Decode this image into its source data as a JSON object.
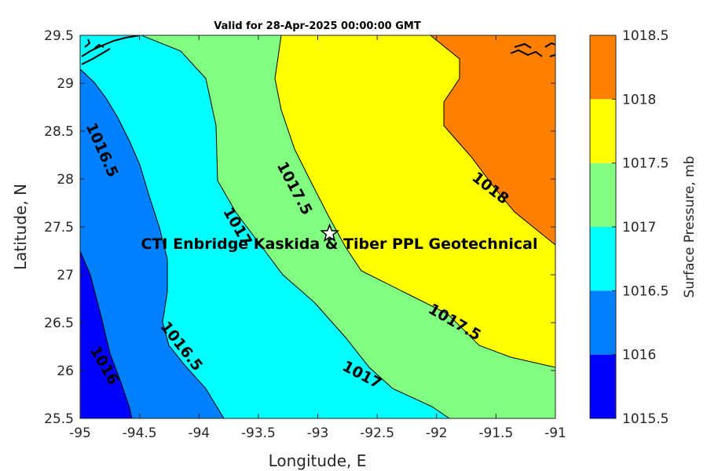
{
  "title": "Valid for 28-Apr-2025 00:00:00 GMT",
  "chart_data": {
    "type": "contour-map",
    "xlabel": "Longitude, E",
    "ylabel": "Latitude, N",
    "xlim": [
      -95,
      -91
    ],
    "ylim": [
      25.5,
      29.5
    ],
    "xticks": [
      "-95",
      "-94.5",
      "-94",
      "-93.5",
      "-93",
      "-92.5",
      "-92",
      "-91.5",
      "-91"
    ],
    "yticks": [
      "25.5",
      "26",
      "26.5",
      "27",
      "27.5",
      "28",
      "28.5",
      "29",
      "29.5"
    ],
    "colorbar": {
      "label": "Surface Pressure, mb",
      "levels": [
        1015.5,
        1016,
        1016.5,
        1017,
        1017.5,
        1018,
        1018.5
      ],
      "tick_labels": [
        "1015.5",
        "1016",
        "1016.5",
        "1017",
        "1017.5",
        "1018",
        "1018.5"
      ],
      "colors": [
        "#0000ff",
        "#0080ff",
        "#00ffff",
        "#80ff80",
        "#ffff00",
        "#ff8000",
        "#ff0000"
      ]
    },
    "contour_labels": [
      {
        "text": "1016.5",
        "lon": -94.82,
        "lat": 28.3
      },
      {
        "text": "1016",
        "lon": -94.8,
        "lat": 26.05
      },
      {
        "text": "1016.5",
        "lon": -94.15,
        "lat": 26.25
      },
      {
        "text": "1017",
        "lon": -93.68,
        "lat": 27.5
      },
      {
        "text": "1017.5",
        "lon": -93.2,
        "lat": 27.9
      },
      {
        "text": "1017",
        "lon": -92.63,
        "lat": 25.95
      },
      {
        "text": "1017.5",
        "lon": -91.85,
        "lat": 26.5
      },
      {
        "text": "1018",
        "lon": -91.55,
        "lat": 27.9
      }
    ],
    "site": {
      "label": "CTI Enbridge  Kaskida & Tiber PPL Geotechnical",
      "lon": -92.9,
      "lat": 27.43
    }
  }
}
